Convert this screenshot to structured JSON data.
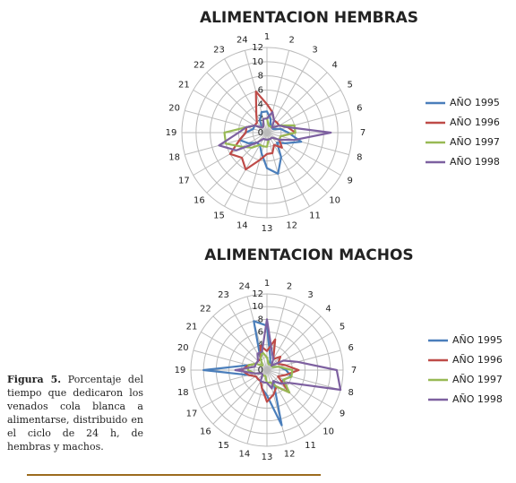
{
  "chart_data": [
    {
      "type": "radar",
      "title": "ALIMENTACION HEMBRAS",
      "categories": [
        "1",
        "2",
        "3",
        "4",
        "5",
        "6",
        "7",
        "8",
        "9",
        "10",
        "11",
        "12",
        "13",
        "14",
        "15",
        "16",
        "17",
        "18",
        "19",
        "20",
        "21",
        "22",
        "23",
        "24"
      ],
      "rlim": [
        0,
        12
      ],
      "rticks": [
        0,
        2,
        4,
        6,
        8,
        10,
        12
      ],
      "grid": true,
      "series": [
        {
          "name": "AÑO 1995",
          "color": "#4a7ebb",
          "values": [
            3,
            2,
            1,
            1,
            1,
            2,
            3,
            5,
            3,
            2,
            4,
            6,
            5,
            3,
            2,
            2,
            3,
            4,
            3,
            2,
            2,
            1,
            2,
            3
          ]
        },
        {
          "name": "AÑO 1996",
          "color": "#be4b48",
          "values": [
            4,
            3,
            2,
            2,
            2,
            3,
            4,
            2,
            2,
            3,
            2,
            3,
            3,
            4,
            6,
            5,
            6,
            4,
            3,
            3,
            2,
            2,
            3,
            6
          ]
        },
        {
          "name": "AÑO 1997",
          "color": "#98b954",
          "values": [
            2,
            1,
            1,
            1,
            2,
            4,
            4,
            2,
            2,
            1,
            1,
            1,
            2,
            2,
            2,
            3,
            4,
            6,
            6,
            3,
            2,
            1,
            1,
            2
          ]
        },
        {
          "name": "AÑO 1998",
          "color": "#7d60a0",
          "values": [
            2,
            3,
            2,
            1,
            2,
            3,
            9,
            4,
            2,
            1,
            1,
            1,
            1,
            1,
            1,
            2,
            5,
            7,
            4,
            3,
            2,
            1,
            1,
            2
          ]
        }
      ]
    },
    {
      "type": "radar",
      "title": "ALIMENTACION MACHOS",
      "categories": [
        "1",
        "2",
        "3",
        "4",
        "5",
        "6",
        "7",
        "8",
        "9",
        "10",
        "11",
        "12",
        "13",
        "14",
        "15",
        "16",
        "17",
        "18",
        "19",
        "20",
        "21",
        "22",
        "23",
        "24"
      ],
      "rlim": [
        0,
        12
      ],
      "rticks": [
        0,
        2,
        4,
        6,
        8,
        10,
        12
      ],
      "grid": true,
      "series": [
        {
          "name": "AÑO 1995",
          "color": "#4a7ebb",
          "values": [
            7,
            2,
            1,
            1,
            1,
            2,
            3,
            4,
            3,
            3,
            2,
            9,
            4,
            3,
            2,
            2,
            2,
            3,
            10,
            3,
            2,
            2,
            2,
            8
          ]
        },
        {
          "name": "AÑO 1996",
          "color": "#be4b48",
          "values": [
            3,
            5,
            2,
            3,
            2,
            3,
            5,
            3,
            2,
            5,
            3,
            4,
            5,
            3,
            2,
            2,
            2,
            3,
            4,
            3,
            2,
            2,
            2,
            4
          ]
        },
        {
          "name": "AÑO 1997",
          "color": "#98b954",
          "values": [
            2,
            1,
            1,
            1,
            1,
            2,
            4,
            4,
            3,
            5,
            3,
            2,
            2,
            1,
            1,
            1,
            1,
            2,
            3,
            3,
            2,
            1,
            2,
            3
          ]
        },
        {
          "name": "AÑO 1998",
          "color": "#7d60a0",
          "values": [
            8,
            3,
            2,
            1,
            3,
            5,
            11,
            12,
            4,
            3,
            2,
            3,
            2,
            2,
            2,
            1,
            1,
            2,
            5,
            2,
            2,
            2,
            3,
            3
          ]
        }
      ]
    }
  ],
  "caption": {
    "label": "Figura 5.",
    "text": "Porcentaje del tiempo que dedicaron los venados cola blanca a alimentarse, distribuido en el ciclo de 24 h, de hembras y machos."
  }
}
